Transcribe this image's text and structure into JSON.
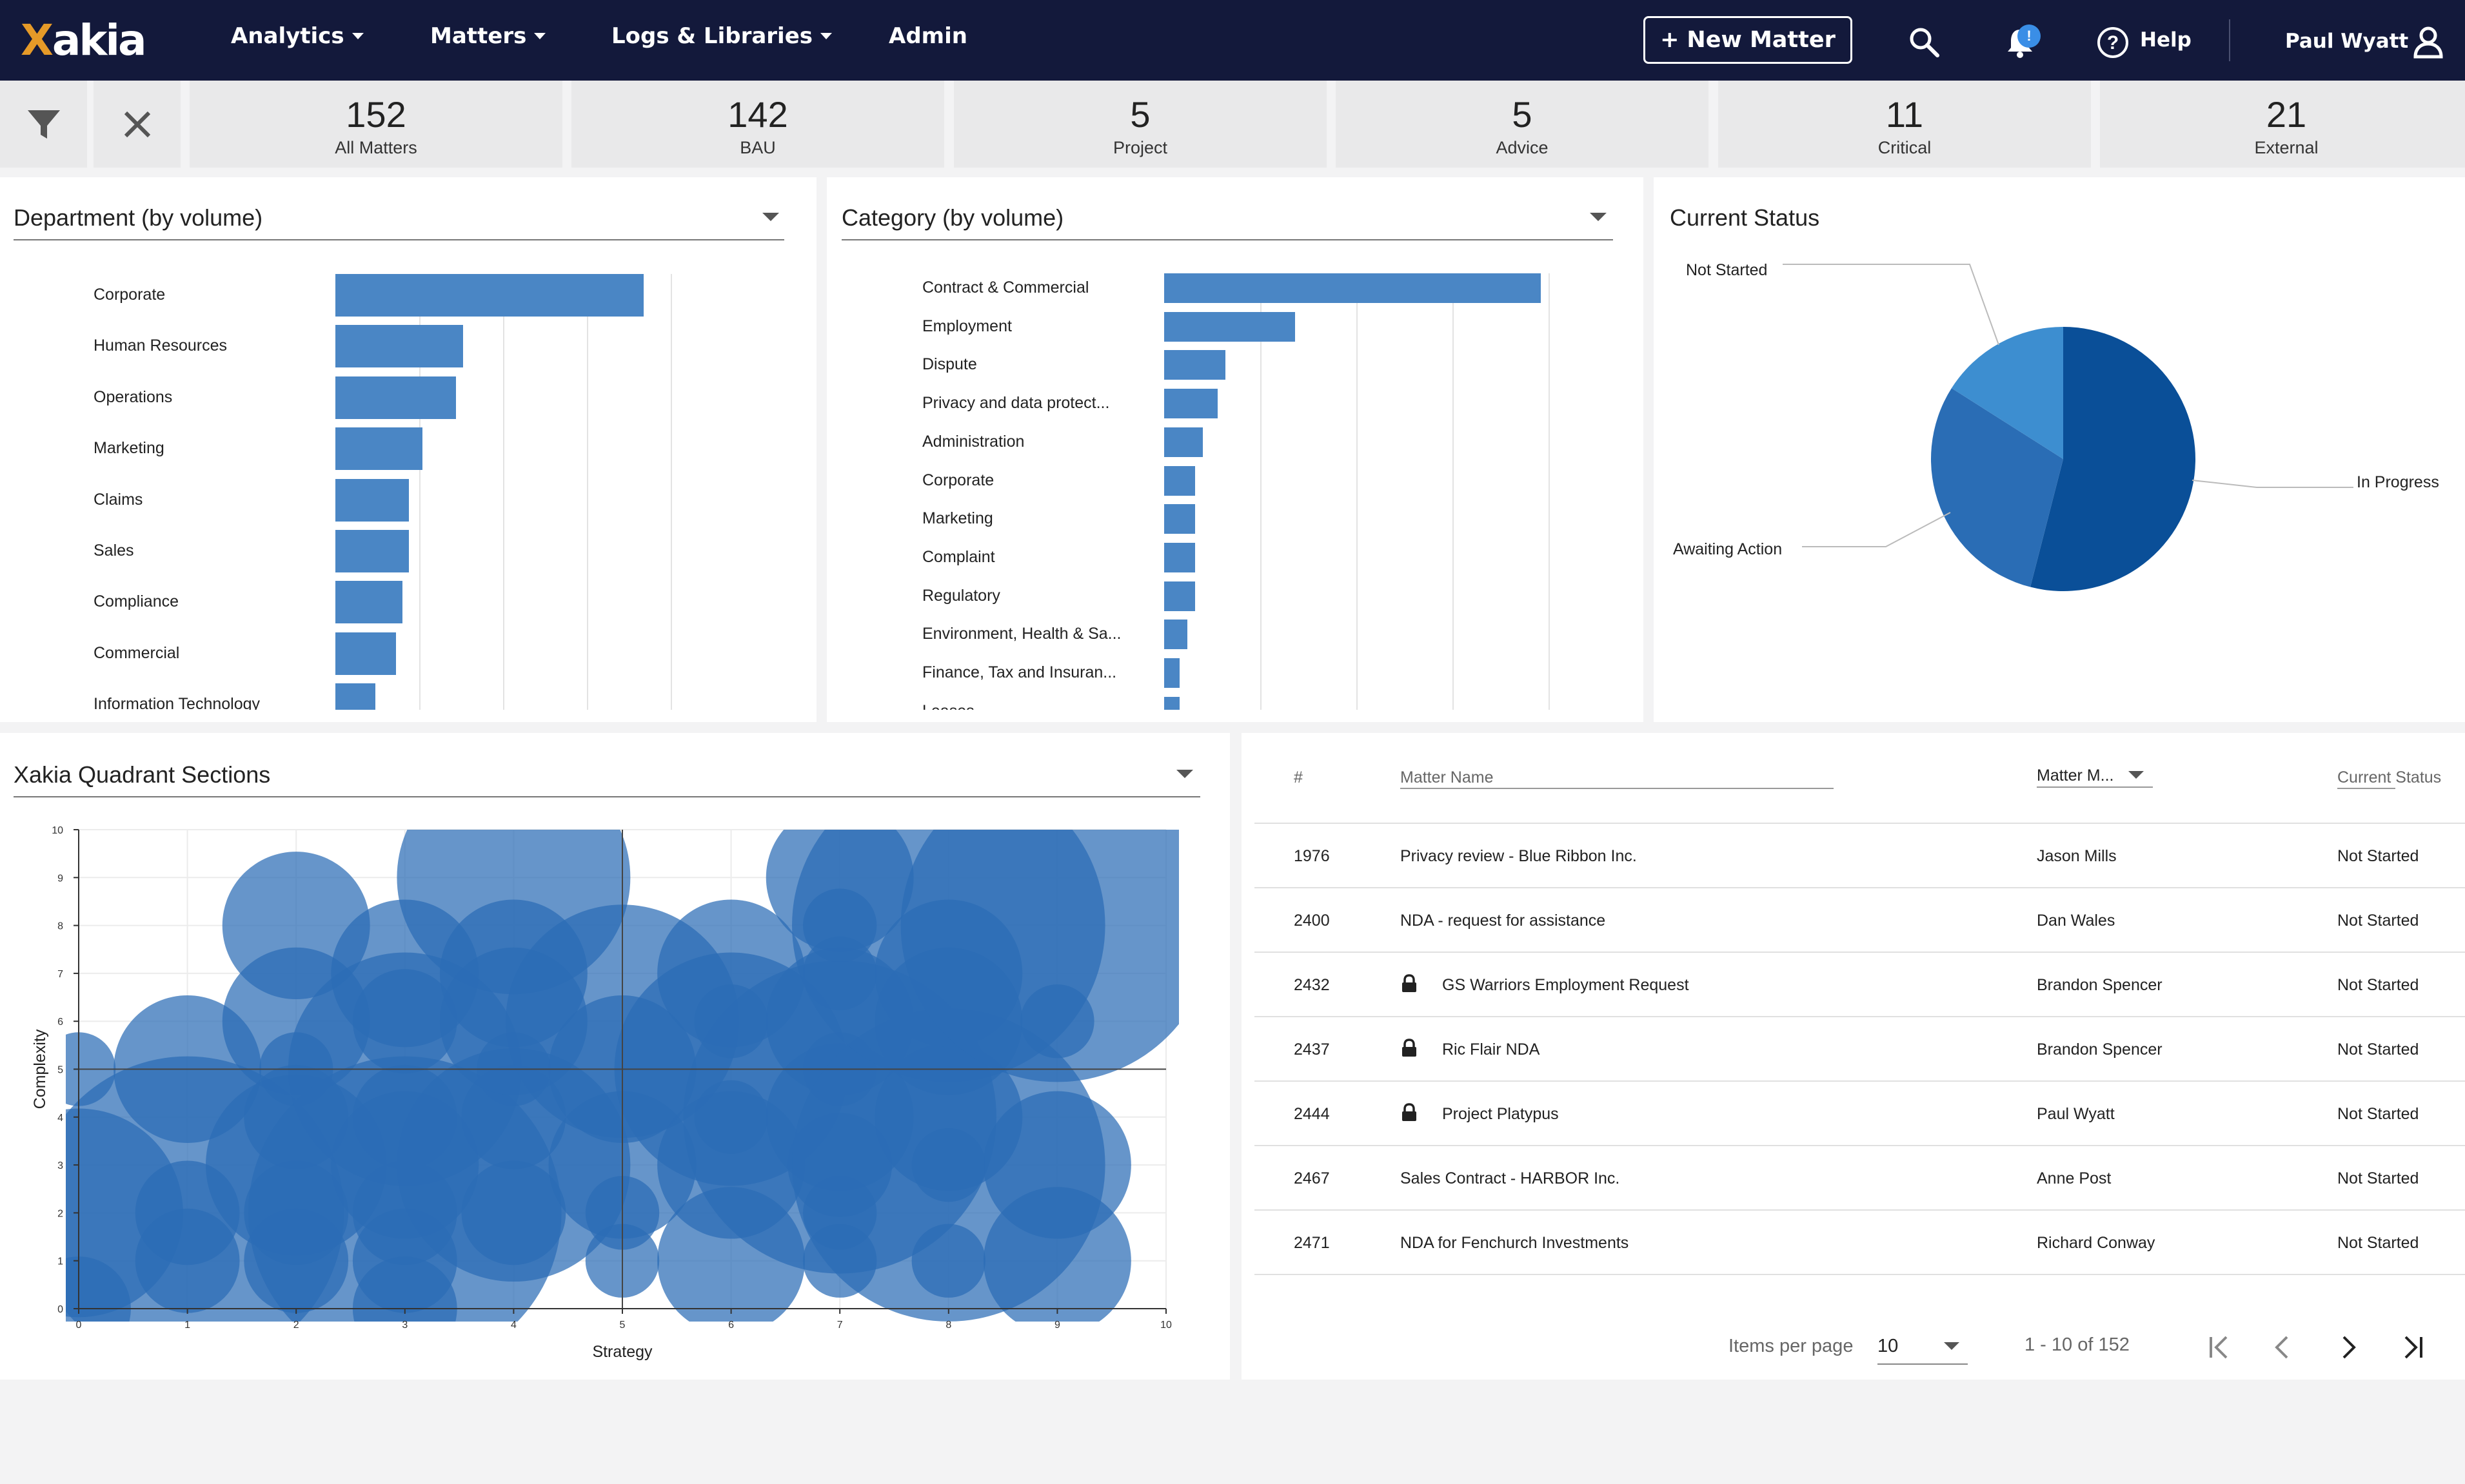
{
  "nav": {
    "logo": "Xakia",
    "menus": [
      {
        "label": "Analytics"
      },
      {
        "label": "Matters"
      },
      {
        "label": "Logs & Libraries"
      },
      {
        "label": "Admin"
      }
    ],
    "new_matter": "New Matter",
    "help": "Help",
    "user": "Paul Wyatt",
    "notification_badge": "!"
  },
  "stats": [
    {
      "value": "152",
      "label": "All Matters"
    },
    {
      "value": "142",
      "label": "BAU"
    },
    {
      "value": "5",
      "label": "Project"
    },
    {
      "value": "5",
      "label": "Advice"
    },
    {
      "value": "11",
      "label": "Critical"
    },
    {
      "value": "21",
      "label": "External"
    }
  ],
  "department": {
    "title": "Department (by volume)",
    "chart_data": {
      "type": "bar",
      "orientation": "horizontal",
      "categories": [
        "Corporate",
        "Human Resources",
        "Operations",
        "Marketing",
        "Claims",
        "Sales",
        "Compliance",
        "Commercial",
        "Information Technology"
      ],
      "values": [
        46,
        19,
        18,
        13,
        11,
        11,
        10,
        9,
        6
      ],
      "xlim": [
        0,
        50
      ],
      "grid": true
    }
  },
  "category": {
    "title": "Category (by volume)",
    "chart_data": {
      "type": "bar",
      "orientation": "horizontal",
      "categories": [
        "Contract & Commercial",
        "Employment",
        "Dispute",
        "Privacy and data protect...",
        "Administration",
        "Corporate",
        "Marketing",
        "Complaint",
        "Regulatory",
        "Environment, Health & Sa...",
        "Finance, Tax and Insuran...",
        "Leases"
      ],
      "values": [
        49,
        17,
        8,
        7,
        5,
        4,
        4,
        4,
        4,
        3,
        2,
        2
      ],
      "xlim": [
        0,
        50
      ],
      "grid": true
    }
  },
  "status": {
    "title": "Current Status",
    "chart_data": {
      "type": "pie",
      "slices": [
        {
          "label": "In Progress",
          "value": 54,
          "color": "#0a4f98"
        },
        {
          "label": "Awaiting Action",
          "value": 30,
          "color": "#2a6db5"
        },
        {
          "label": "Not Started",
          "value": 16,
          "color": "#3d8ed0"
        }
      ]
    }
  },
  "quadrant": {
    "title": "Xakia Quadrant Sections",
    "chart_data": {
      "type": "scatter",
      "xlabel": "Strategy",
      "ylabel": "Complexity",
      "xlim": [
        0,
        10
      ],
      "ylim": [
        0,
        10
      ],
      "xticks": [
        "0",
        "1",
        "2",
        "3",
        "4",
        "5",
        "6",
        "7",
        "8",
        "9",
        "10"
      ],
      "yticks": [
        "0",
        "1",
        "2",
        "3",
        "4",
        "5",
        "6",
        "7",
        "8",
        "9",
        "10"
      ],
      "quadrant_lines": {
        "x": 5,
        "y": 5
      },
      "bubble_color": "#2b6cb5",
      "points": [
        {
          "x": 0,
          "y": 0,
          "r": 1
        },
        {
          "x": 0,
          "y": 2,
          "r": 4
        },
        {
          "x": 0,
          "y": 5,
          "r": 0.5
        },
        {
          "x": 1,
          "y": 1,
          "r": 1
        },
        {
          "x": 1,
          "y": 2,
          "r": 1
        },
        {
          "x": 1,
          "y": 2,
          "r": 9
        },
        {
          "x": 1,
          "y": 5,
          "r": 2
        },
        {
          "x": 2,
          "y": 1,
          "r": 1
        },
        {
          "x": 2,
          "y": 2,
          "r": 1
        },
        {
          "x": 2,
          "y": 3,
          "r": 3
        },
        {
          "x": 2,
          "y": 4,
          "r": 1
        },
        {
          "x": 2,
          "y": 5,
          "r": 0.5
        },
        {
          "x": 2,
          "y": 6,
          "r": 2
        },
        {
          "x": 2,
          "y": 8,
          "r": 2
        },
        {
          "x": 3,
          "y": 0,
          "r": 1
        },
        {
          "x": 3,
          "y": 1,
          "r": 1
        },
        {
          "x": 3,
          "y": 2,
          "r": 1
        },
        {
          "x": 3,
          "y": 2,
          "r": 9
        },
        {
          "x": 3,
          "y": 3,
          "r": 2
        },
        {
          "x": 3,
          "y": 4,
          "r": 1
        },
        {
          "x": 3,
          "y": 5,
          "r": 5
        },
        {
          "x": 3,
          "y": 6,
          "r": 1
        },
        {
          "x": 3,
          "y": 7,
          "r": 2
        },
        {
          "x": 4,
          "y": 2,
          "r": 1
        },
        {
          "x": 4,
          "y": 3,
          "r": 5
        },
        {
          "x": 4,
          "y": 4,
          "r": 1
        },
        {
          "x": 4,
          "y": 5,
          "r": 0.5
        },
        {
          "x": 4,
          "y": 6,
          "r": 2
        },
        {
          "x": 4,
          "y": 7,
          "r": 2
        },
        {
          "x": 4,
          "y": 9,
          "r": 5
        },
        {
          "x": 5,
          "y": 1,
          "r": 0.5
        },
        {
          "x": 5,
          "y": 2,
          "r": 0.5
        },
        {
          "x": 5,
          "y": 3,
          "r": 2
        },
        {
          "x": 5,
          "y": 5,
          "r": 2
        },
        {
          "x": 5,
          "y": 6,
          "r": 5
        },
        {
          "x": 6,
          "y": 1,
          "r": 2
        },
        {
          "x": 6,
          "y": 3,
          "r": 2
        },
        {
          "x": 6,
          "y": 4,
          "r": 0.5
        },
        {
          "x": 6,
          "y": 5,
          "r": 5
        },
        {
          "x": 6,
          "y": 6,
          "r": 0.5
        },
        {
          "x": 6,
          "y": 7,
          "r": 2
        },
        {
          "x": 7,
          "y": 1,
          "r": 0.5
        },
        {
          "x": 7,
          "y": 2,
          "r": 0.5
        },
        {
          "x": 7,
          "y": 3,
          "r": 1
        },
        {
          "x": 7,
          "y": 4,
          "r": 2
        },
        {
          "x": 7,
          "y": 4,
          "r": 9
        },
        {
          "x": 7,
          "y": 5,
          "r": 0.5
        },
        {
          "x": 7,
          "y": 6,
          "r": 2
        },
        {
          "x": 7,
          "y": 7,
          "r": 0.5
        },
        {
          "x": 7,
          "y": 8,
          "r": 0.5
        },
        {
          "x": 7,
          "y": 9,
          "r": 2
        },
        {
          "x": 8,
          "y": 1,
          "r": 0.5
        },
        {
          "x": 8,
          "y": 3,
          "r": 0.5
        },
        {
          "x": 8,
          "y": 3,
          "r": 9
        },
        {
          "x": 8,
          "y": 4,
          "r": 2
        },
        {
          "x": 8,
          "y": 6,
          "r": 2
        },
        {
          "x": 8,
          "y": 7,
          "r": 2
        },
        {
          "x": 8,
          "y": 8,
          "r": 9
        },
        {
          "x": 9,
          "y": 1,
          "r": 2
        },
        {
          "x": 9,
          "y": 3,
          "r": 2
        },
        {
          "x": 9,
          "y": 6,
          "r": 0.5
        },
        {
          "x": 9,
          "y": 8,
          "r": 9
        }
      ]
    }
  },
  "table": {
    "headers": {
      "num": "#",
      "name": "Matter Name",
      "manager": "Matter M...",
      "status": "Current Status"
    },
    "rows": [
      {
        "num": "1976",
        "name": "Privacy review - Blue Ribbon Inc.",
        "manager": "Jason Mills",
        "status": "Not Started",
        "locked": false
      },
      {
        "num": "2400",
        "name": "NDA - request for assistance",
        "manager": "Dan Wales",
        "status": "Not Started",
        "locked": false
      },
      {
        "num": "2432",
        "name": "GS Warriors Employment Request",
        "manager": "Brandon Spencer",
        "status": "Not Started",
        "locked": true
      },
      {
        "num": "2437",
        "name": "Ric Flair NDA",
        "manager": "Brandon Spencer",
        "status": "Not Started",
        "locked": true
      },
      {
        "num": "2444",
        "name": "Project Platypus",
        "manager": "Paul Wyatt",
        "status": "Not Started",
        "locked": true
      },
      {
        "num": "2467",
        "name": "Sales Contract - HARBOR Inc.",
        "manager": "Anne Post",
        "status": "Not Started",
        "locked": false
      },
      {
        "num": "2471",
        "name": "NDA for Fenchurch Investments",
        "manager": "Richard Conway",
        "status": "Not Started",
        "locked": false
      }
    ],
    "pagination": {
      "items_per_page_label": "Items per page",
      "items_per_page": "10",
      "range": "1 - 10 of 152"
    }
  }
}
